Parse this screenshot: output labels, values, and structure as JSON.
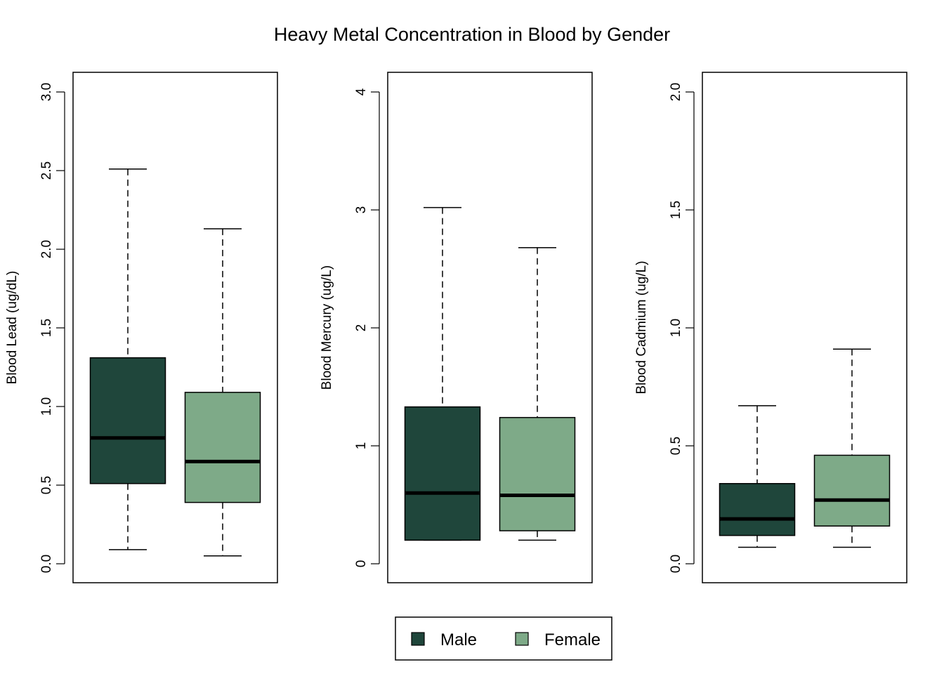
{
  "chart_data": {
    "type": "boxplot",
    "title": "Heavy Metal Concentration in Blood by Gender",
    "legend": {
      "placement": "bottom-center",
      "entries": [
        {
          "label": "Male",
          "color": "#1f463b"
        },
        {
          "label": "Female",
          "color": "#7eaa88"
        }
      ]
    },
    "panels": [
      {
        "ylabel": "Blood Lead (ug/dL)",
        "ylim": [
          0.0,
          3.0
        ],
        "ticks": [
          "0.0",
          "0.5",
          "1.0",
          "1.5",
          "2.0",
          "2.5",
          "3.0"
        ],
        "boxes": [
          {
            "group": "Male",
            "color": "#1f463b",
            "min": 0.09,
            "q1": 0.51,
            "median": 0.8,
            "q3": 1.31,
            "max": 2.51
          },
          {
            "group": "Female",
            "color": "#7eaa88",
            "min": 0.05,
            "q1": 0.39,
            "median": 0.65,
            "q3": 1.09,
            "max": 2.13
          }
        ]
      },
      {
        "ylabel": "Blood Mercury (ug/L)",
        "ylim": [
          0,
          4
        ],
        "ticks": [
          "0",
          "1",
          "2",
          "3",
          "4"
        ],
        "boxes": [
          {
            "group": "Male",
            "color": "#1f463b",
            "min": 0.2,
            "q1": 0.2,
            "median": 0.6,
            "q3": 1.33,
            "max": 3.02
          },
          {
            "group": "Female",
            "color": "#7eaa88",
            "min": 0.2,
            "q1": 0.28,
            "median": 0.58,
            "q3": 1.24,
            "max": 2.68
          }
        ]
      },
      {
        "ylabel": "Blood Cadmium (ug/L)",
        "ylim": [
          0.0,
          2.0
        ],
        "ticks": [
          "0.0",
          "0.5",
          "1.0",
          "1.5",
          "2.0"
        ],
        "boxes": [
          {
            "group": "Male",
            "color": "#1f463b",
            "min": 0.07,
            "q1": 0.12,
            "median": 0.19,
            "q3": 0.34,
            "max": 0.67
          },
          {
            "group": "Female",
            "color": "#7eaa88",
            "min": 0.07,
            "q1": 0.16,
            "median": 0.27,
            "q3": 0.46,
            "max": 0.91
          }
        ]
      }
    ]
  }
}
